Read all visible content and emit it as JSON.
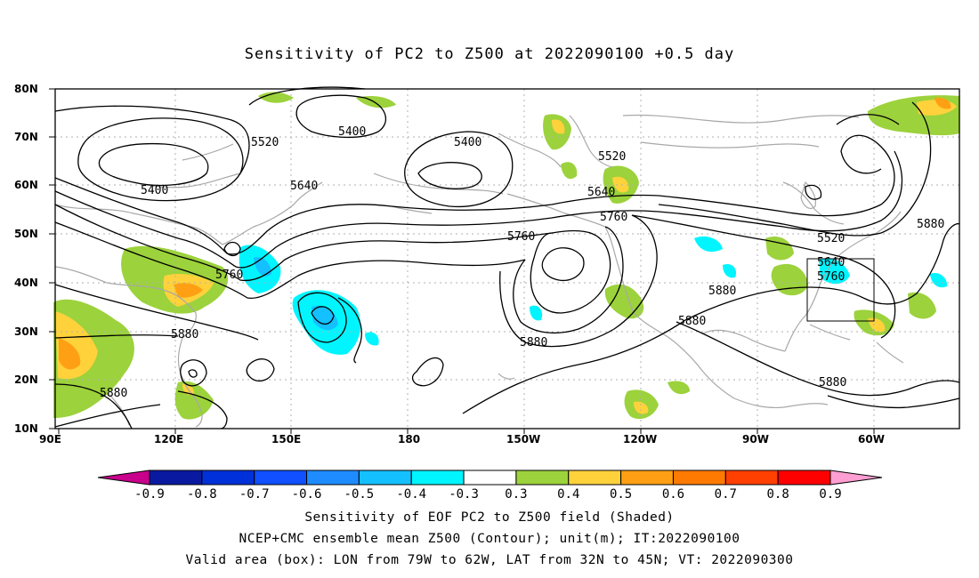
{
  "title": "Sensitivity of PC2 to Z500 at 2022090100 +0.5 day",
  "map": {
    "lat_labels": [
      "80N",
      "70N",
      "60N",
      "50N",
      "40N",
      "30N",
      "20N",
      "10N"
    ],
    "lon_labels": [
      "90E",
      "120E",
      "150E",
      "180",
      "150W",
      "120W",
      "90W",
      "60W"
    ],
    "valid_box": {
      "lon_west": "79W",
      "lon_east": "62W",
      "lat_south": "32N",
      "lat_north": "45N"
    },
    "contour_labels": [
      {
        "text": "5400",
        "id": "c5400-a"
      },
      {
        "text": "5400",
        "id": "c5400-b"
      },
      {
        "text": "5400",
        "id": "c5400-c"
      },
      {
        "text": "5520",
        "id": "c5520-a"
      },
      {
        "text": "5520",
        "id": "c5520-b"
      },
      {
        "text": "5520",
        "id": "c5520-c"
      },
      {
        "text": "5640",
        "id": "c5640-a"
      },
      {
        "text": "5640",
        "id": "c5640-b"
      },
      {
        "text": "5640",
        "id": "c5640-c"
      },
      {
        "text": "5760",
        "id": "c5760-a"
      },
      {
        "text": "5760",
        "id": "c5760-b"
      },
      {
        "text": "5760",
        "id": "c5760-c"
      },
      {
        "text": "5760",
        "id": "c5760-d"
      },
      {
        "text": "5880",
        "id": "c5880-a"
      },
      {
        "text": "5880",
        "id": "c5880-b"
      },
      {
        "text": "5880",
        "id": "c5880-c"
      },
      {
        "text": "5880",
        "id": "c5880-d"
      },
      {
        "text": "5880",
        "id": "c5880-e"
      },
      {
        "text": "5880",
        "id": "c5880-f"
      },
      {
        "text": "5880",
        "id": "c5880-g"
      }
    ]
  },
  "colorbar": {
    "ticks": [
      "-0.9",
      "-0.8",
      "-0.7",
      "-0.6",
      "-0.5",
      "-0.4",
      "-0.3",
      "0.3",
      "0.4",
      "0.5",
      "0.6",
      "0.7",
      "0.8",
      "0.9"
    ],
    "colors": [
      "#c8008c",
      "#0a1aa0",
      "#0030d8",
      "#1050ff",
      "#1e8cff",
      "#14c0ff",
      "#00f5ff",
      "#ffffff",
      "#9cd23c",
      "#ffd23c",
      "#ffa014",
      "#ff7a00",
      "#ff4000",
      "#ff0000",
      "#ff9ed2"
    ]
  },
  "captions": [
    "Sensitivity of EOF PC2 to Z500 field (Shaded)",
    "NCEP+CMC ensemble mean Z500 (Contour); unit(m); IT:2022090100",
    "Valid area (box): LON from 79W to 62W, LAT from 32N to 45N; VT: 2022090300"
  ]
}
